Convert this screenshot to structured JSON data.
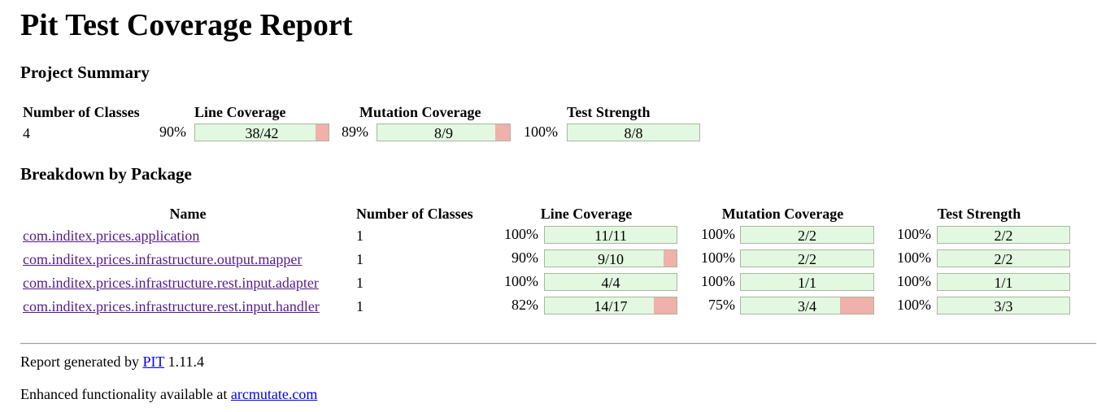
{
  "title": "Pit Test Coverage Report",
  "project_summary": {
    "heading": "Project Summary",
    "headers": {
      "classes": "Number of Classes",
      "line": "Line Coverage",
      "mutation": "Mutation Coverage",
      "strength": "Test Strength"
    },
    "classes": "4",
    "line": {
      "pct": "90%",
      "ratio": "38/42",
      "fraction": 0.905
    },
    "mutation": {
      "pct": "89%",
      "ratio": "8/9",
      "fraction": 0.889
    },
    "strength": {
      "pct": "100%",
      "ratio": "8/8",
      "fraction": 1.0
    }
  },
  "breakdown": {
    "heading": "Breakdown by Package",
    "headers": {
      "name": "Name",
      "classes": "Number of Classes",
      "line": "Line Coverage",
      "mutation": "Mutation Coverage",
      "strength": "Test Strength"
    },
    "rows": [
      {
        "name": "com.inditex.prices.application",
        "classes": "1",
        "line": {
          "pct": "100%",
          "ratio": "11/11",
          "fraction": 1.0
        },
        "mutation": {
          "pct": "100%",
          "ratio": "2/2",
          "fraction": 1.0
        },
        "strength": {
          "pct": "100%",
          "ratio": "2/2",
          "fraction": 1.0
        }
      },
      {
        "name": "com.inditex.prices.infrastructure.output.mapper",
        "classes": "1",
        "line": {
          "pct": "90%",
          "ratio": "9/10",
          "fraction": 0.9
        },
        "mutation": {
          "pct": "100%",
          "ratio": "2/2",
          "fraction": 1.0
        },
        "strength": {
          "pct": "100%",
          "ratio": "2/2",
          "fraction": 1.0
        }
      },
      {
        "name": "com.inditex.prices.infrastructure.rest.input.adapter",
        "classes": "1",
        "line": {
          "pct": "100%",
          "ratio": "4/4",
          "fraction": 1.0
        },
        "mutation": {
          "pct": "100%",
          "ratio": "1/1",
          "fraction": 1.0
        },
        "strength": {
          "pct": "100%",
          "ratio": "1/1",
          "fraction": 1.0
        }
      },
      {
        "name": "com.inditex.prices.infrastructure.rest.input.handler",
        "classes": "1",
        "line": {
          "pct": "82%",
          "ratio": "14/17",
          "fraction": 0.824
        },
        "mutation": {
          "pct": "75%",
          "ratio": "3/4",
          "fraction": 0.75
        },
        "strength": {
          "pct": "100%",
          "ratio": "3/3",
          "fraction": 1.0
        }
      }
    ]
  },
  "footer": {
    "generated_prefix": "Report generated by ",
    "pit_link": "PIT",
    "version": " 1.11.4",
    "enhanced_prefix": "Enhanced functionality available at ",
    "arcmutate_link": "arcmutate.com"
  },
  "colors": {
    "covered": "#e2f8e0",
    "uncovered": "#f0b0ab",
    "bar_border": "#a8b89f",
    "visited_link": "#551a8b",
    "link": "#0000ee"
  }
}
